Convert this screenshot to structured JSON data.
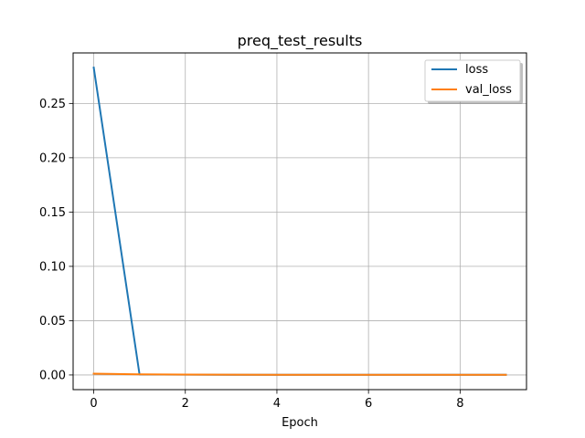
{
  "chart_data": {
    "type": "line",
    "title": "preq_test_results",
    "xlabel": "Epoch",
    "ylabel": "",
    "x": [
      0,
      1,
      2,
      3,
      4,
      5,
      6,
      7,
      8,
      9
    ],
    "xticks": [
      0,
      2,
      4,
      6,
      8
    ],
    "yticks": [
      0.0,
      0.05,
      0.1,
      0.15,
      0.2,
      0.25
    ],
    "ytick_labels": [
      "0.00",
      "0.05",
      "0.10",
      "0.15",
      "0.20",
      "0.25"
    ],
    "xlim": [
      -0.45,
      9.45
    ],
    "ylim": [
      -0.0135,
      0.2965
    ],
    "grid": true,
    "legend_position": "top-right",
    "series": [
      {
        "name": "loss",
        "color": "#1f77b4",
        "values": [
          0.283,
          0.0005,
          0.0003,
          0.0002,
          0.0002,
          0.0001,
          0.0001,
          0.0001,
          0.0001,
          0.0001
        ]
      },
      {
        "name": "val_loss",
        "color": "#ff7f0e",
        "values": [
          0.0012,
          0.0006,
          0.0004,
          0.0003,
          0.0002,
          0.0002,
          0.0001,
          0.0001,
          0.0001,
          0.0001
        ]
      }
    ]
  }
}
